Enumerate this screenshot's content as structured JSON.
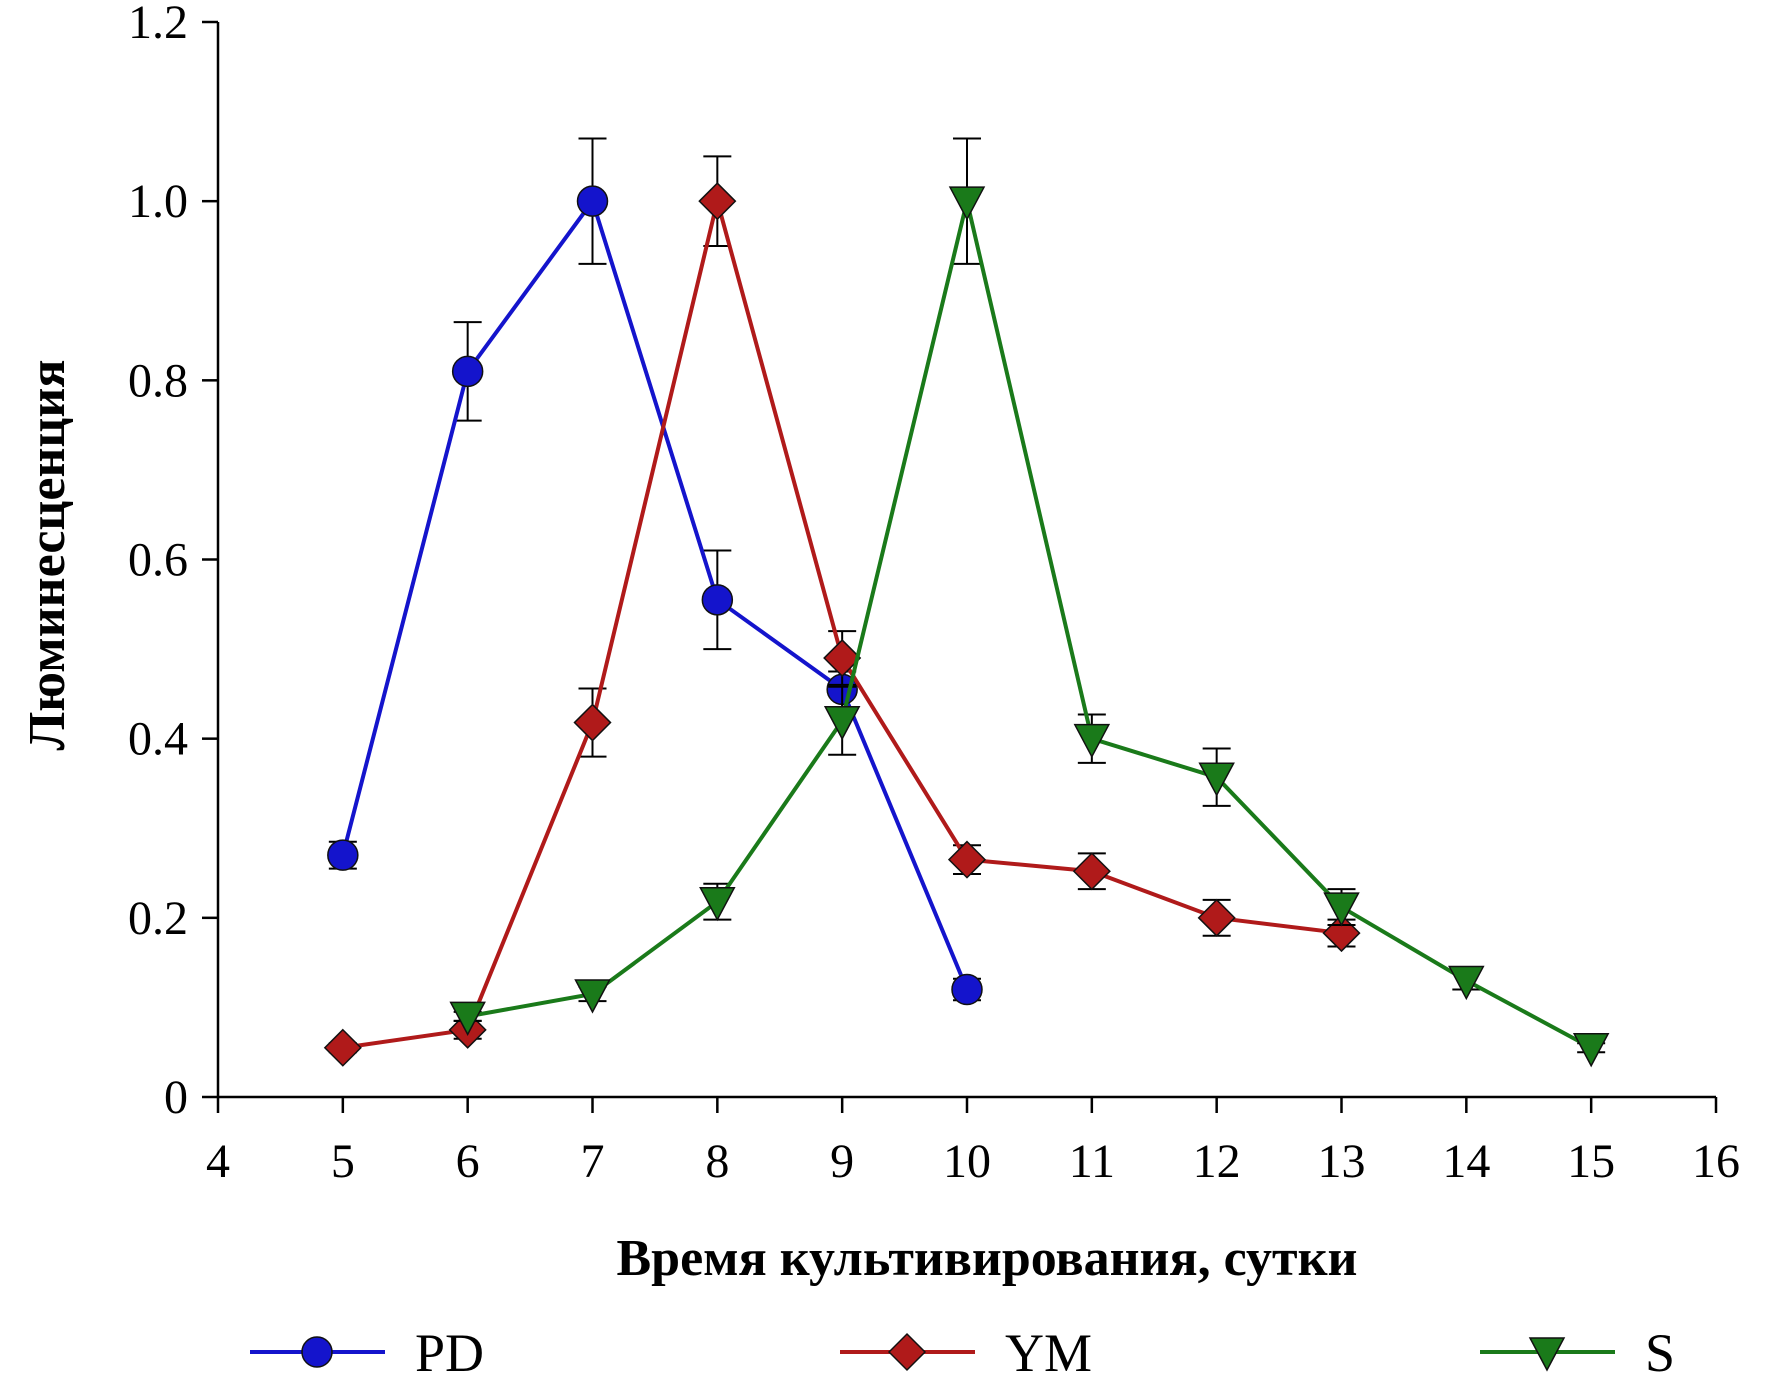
{
  "chart_data": {
    "type": "line",
    "title": "",
    "xlabel": "Время культивирования, сутки",
    "ylabel": "Люминесценция",
    "xlim": [
      4,
      16
    ],
    "ylim": [
      0,
      1.2
    ],
    "x_ticks": [
      4,
      5,
      6,
      7,
      8,
      9,
      10,
      11,
      12,
      13,
      14,
      15,
      16
    ],
    "x_tick_labels": [
      "4",
      "5",
      "6",
      "7",
      "8",
      "9",
      "10",
      "11",
      "12",
      "13",
      "14",
      "15",
      "16"
    ],
    "y_ticks": [
      0,
      0.2,
      0.4,
      0.6,
      0.8,
      1.0,
      1.2
    ],
    "y_tick_labels": [
      "0",
      "0.2",
      "0.4",
      "0.6",
      "0.8",
      "1.0",
      "1.2"
    ],
    "grid": false,
    "legend_position": "bottom",
    "series": [
      {
        "name": "PD",
        "color": "#1414cc",
        "marker": "circle",
        "x": [
          5,
          6,
          7,
          8,
          9,
          10
        ],
        "y": [
          0.27,
          0.81,
          1.0,
          0.555,
          0.455,
          0.12
        ],
        "err": [
          0.015,
          0.055,
          0.07,
          0.055,
          0.02,
          0.012
        ]
      },
      {
        "name": "YM",
        "color": "#b01a1a",
        "marker": "diamond",
        "x": [
          5,
          6,
          7,
          8,
          9,
          10,
          11,
          12,
          13
        ],
        "y": [
          0.055,
          0.075,
          0.418,
          1.0,
          0.49,
          0.265,
          0.252,
          0.2,
          0.183
        ],
        "err": [
          0.005,
          0.01,
          0.038,
          0.05,
          0.03,
          0.016,
          0.02,
          0.02,
          0.015
        ]
      },
      {
        "name": "S",
        "color": "#1a7a1a",
        "marker": "triangle-down",
        "x": [
          6,
          7,
          8,
          9,
          10,
          11,
          12,
          13,
          14,
          15
        ],
        "y": [
          0.09,
          0.115,
          0.218,
          0.42,
          1.0,
          0.4,
          0.357,
          0.212,
          0.13,
          0.055
        ],
        "err": [
          0.005,
          0.008,
          0.02,
          0.038,
          0.07,
          0.027,
          0.032,
          0.02,
          0.01,
          0.005
        ]
      }
    ]
  }
}
